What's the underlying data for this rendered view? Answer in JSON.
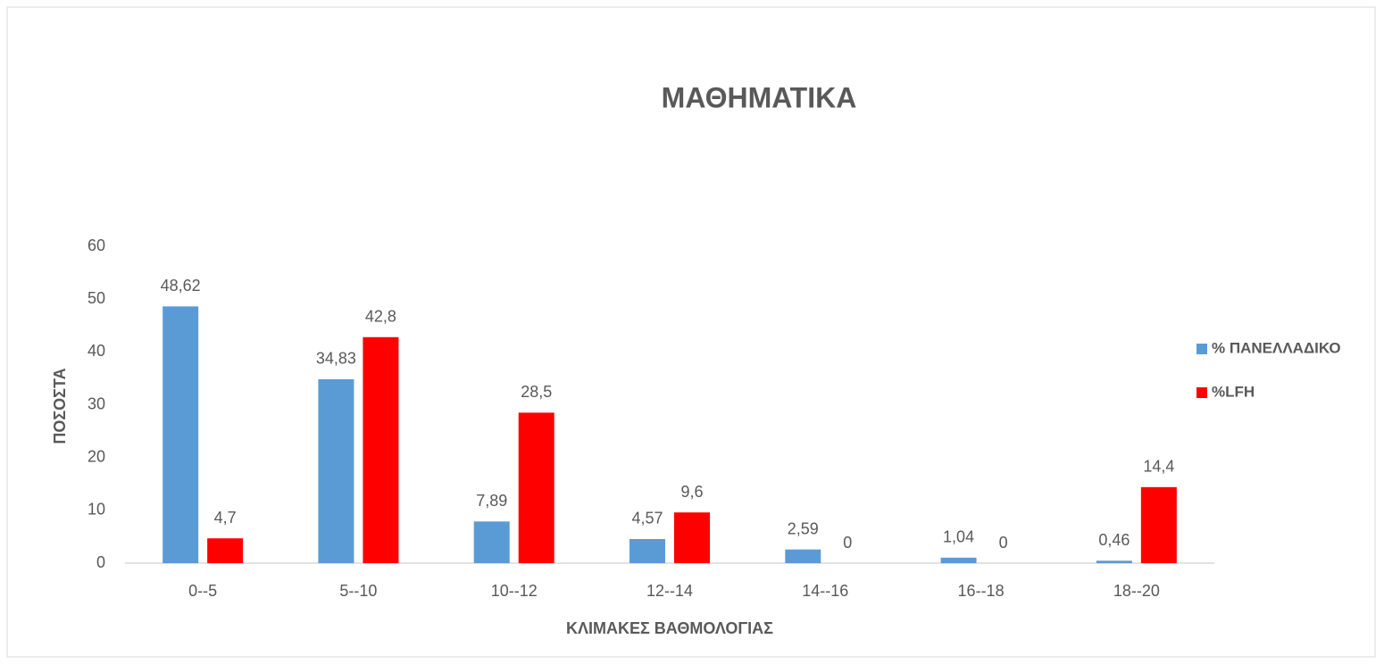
{
  "chart_data": {
    "type": "bar",
    "title": "ΜΑΘΗΜΑΤΙΚΑ",
    "x_label": "ΚΛΙΜΑΚΕΣ ΒΑΘΜΟΛΟΓΙΑΣ",
    "y_label": "ΠΟΣΟΣΤΑ",
    "categories": [
      "0--5",
      "5--10",
      "10--12",
      "12--14",
      "14--16",
      "16--18",
      "18--20"
    ],
    "series": [
      {
        "name": "% ΠΑΝΕΛΛΑΔΙΚΟ",
        "color": "#5b9bd5",
        "values": [
          48.62,
          34.83,
          7.89,
          4.57,
          2.59,
          1.04,
          0.46
        ],
        "value_labels": [
          "48,62",
          "34,83",
          "7,89",
          "4,57",
          "2,59",
          "1,04",
          "0,46"
        ]
      },
      {
        "name": "%LFH",
        "color": "#ff0000",
        "values": [
          4.7,
          42.8,
          28.5,
          9.6,
          0,
          0,
          14.4
        ],
        "value_labels": [
          "4,7",
          "42,8",
          "28,5",
          "9,6",
          "0",
          "0",
          "14,4"
        ]
      }
    ],
    "ylim": [
      0,
      60
    ],
    "yticks": [
      0,
      10,
      20,
      30,
      40,
      50,
      60
    ],
    "grid": false,
    "legend": "right"
  }
}
